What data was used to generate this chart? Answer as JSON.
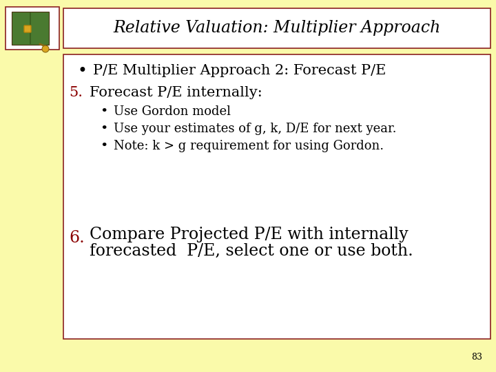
{
  "bg_color": "#fafaaa",
  "title": "Relative Valuation: Multiplier Approach",
  "title_fontsize": 17,
  "title_color": "#000000",
  "title_box_bg": "#ffffff",
  "title_box_edge": "#8b2020",
  "content_box_bg": "#ffffff",
  "content_box_edge": "#8b2020",
  "bullet1": "P/E Multiplier Approach 2: Forecast P/E",
  "item5_label": "5.",
  "item5_text": "Forecast P/E internally:",
  "sub_bullet1": "Use Gordon model",
  "sub_bullet2": "Use your estimates of g, k, D/E for next year.",
  "sub_bullet3": "Note: k > g requirement for using Gordon.",
  "item6_label": "6.",
  "item6_line1": "Compare Projected P/E with internally",
  "item6_line2": "forecasted  P/E, select one or use both.",
  "bullet_color": "#000000",
  "number_color": "#8b0000",
  "text_color": "#000000",
  "main_fontsize": 15,
  "sub_fontsize": 13,
  "large_fontsize": 17,
  "page_number": "83",
  "page_num_fontsize": 9,
  "icon_box_edge": "#8b2020",
  "icon_box_bg": "#ffffff"
}
